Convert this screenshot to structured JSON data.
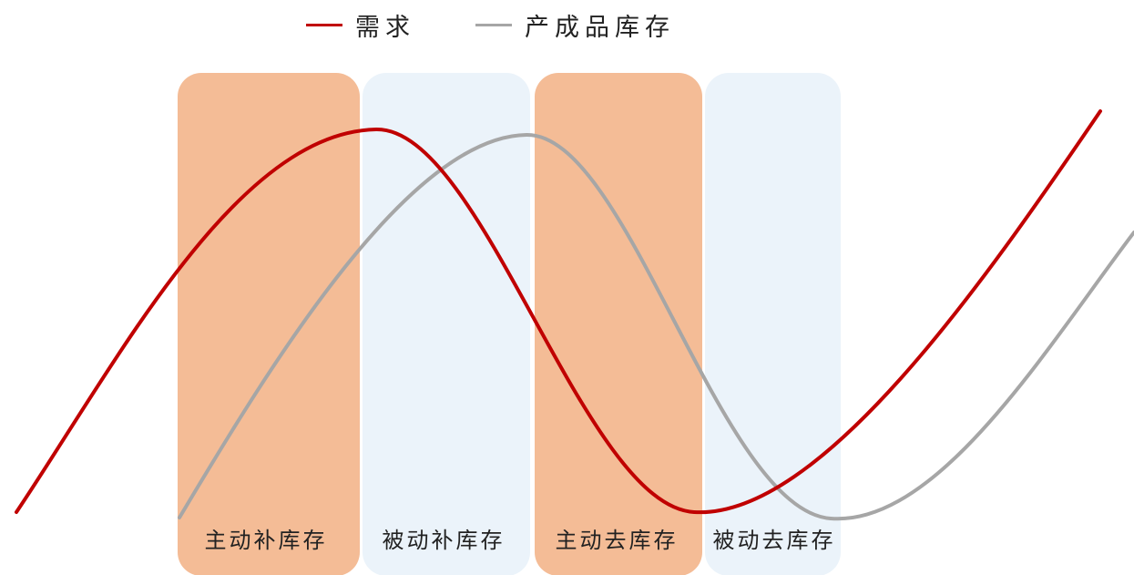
{
  "legend": {
    "demand_label": "需求",
    "inventory_label": "产成品库存"
  },
  "colors": {
    "demand": "#C00000",
    "inventory": "#A6A6A6",
    "active_band": "#F4BC96",
    "passive_band": "#EBF3FA",
    "text": "#222222"
  },
  "phases": [
    {
      "label": "主动补库存",
      "kind": "active"
    },
    {
      "label": "被动补库存",
      "kind": "passive"
    },
    {
      "label": "主动去库存",
      "kind": "active"
    },
    {
      "label": "被动去库存",
      "kind": "passive"
    }
  ]
}
